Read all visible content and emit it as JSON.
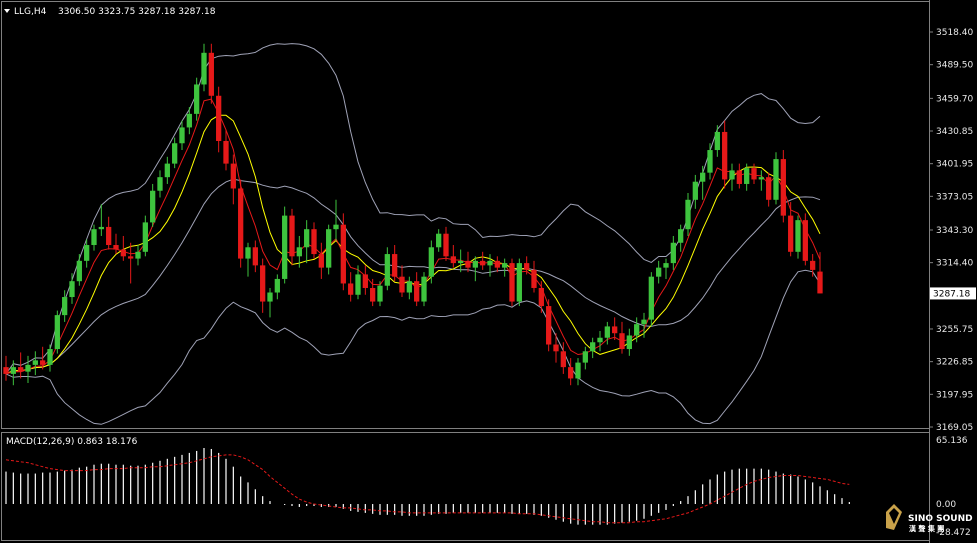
{
  "header": {
    "symbol": "LLG,H4",
    "ohlc": "3306.50 3323.75 3287.18 3287.18"
  },
  "macd_header": "MACD(12,26,9) 0.863 18.176",
  "logo": {
    "text": "SINO SOUND",
    "sub": "漢 聲 集 團"
  },
  "colors": {
    "bull": "#3ec43e",
    "bear": "#e61919",
    "ma_fast": "#e61919",
    "ma_slow": "#ffff00",
    "bands": "#9fa2b6",
    "macd_hist": "#ffffff",
    "macd_signal": "#e61919",
    "background": "#000000",
    "grid": "#808080"
  },
  "chart_data": [
    {
      "type": "candlestick",
      "timeframe": "H4",
      "yticks": [
        "3518.40",
        "3489.50",
        "3459.70",
        "3430.85",
        "3401.95",
        "3373.05",
        "3343.30",
        "3314.40",
        "3285.50",
        "3255.75",
        "3226.85",
        "3197.95",
        "3169.05"
      ],
      "ylim": [
        3169.05,
        3533
      ],
      "current_price": "3287.18",
      "candles": [
        [
          3222,
          3232,
          3210,
          3216
        ],
        [
          3216,
          3228,
          3206,
          3222
        ],
        [
          3222,
          3235,
          3212,
          3218
        ],
        [
          3218,
          3232,
          3208,
          3224
        ],
        [
          3224,
          3236,
          3215,
          3228
        ],
        [
          3228,
          3240,
          3220,
          3224
        ],
        [
          3224,
          3242,
          3218,
          3238
        ],
        [
          3238,
          3272,
          3234,
          3268
        ],
        [
          3268,
          3290,
          3262,
          3284
        ],
        [
          3284,
          3305,
          3278,
          3298
        ],
        [
          3298,
          3322,
          3294,
          3316
        ],
        [
          3316,
          3335,
          3310,
          3330
        ],
        [
          3330,
          3348,
          3325,
          3344
        ],
        [
          3344,
          3366,
          3338,
          3346
        ],
        [
          3346,
          3355,
          3326,
          3330
        ],
        [
          3330,
          3340,
          3322,
          3326
        ],
        [
          3326,
          3338,
          3316,
          3320
        ],
        [
          3320,
          3332,
          3296,
          3318
        ],
        [
          3318,
          3330,
          3312,
          3324
        ],
        [
          3324,
          3356,
          3320,
          3350
        ],
        [
          3350,
          3384,
          3346,
          3378
        ],
        [
          3378,
          3396,
          3372,
          3390
        ],
        [
          3390,
          3408,
          3384,
          3402
        ],
        [
          3402,
          3425,
          3398,
          3420
        ],
        [
          3420,
          3440,
          3414,
          3434
        ],
        [
          3434,
          3452,
          3428,
          3446
        ],
        [
          3446,
          3478,
          3440,
          3472
        ],
        [
          3472,
          3508,
          3466,
          3500
        ],
        [
          3500,
          3508,
          3455,
          3462
        ],
        [
          3462,
          3470,
          3412,
          3422
        ],
        [
          3422,
          3432,
          3396,
          3402
        ],
        [
          3402,
          3410,
          3366,
          3380
        ],
        [
          3380,
          3388,
          3310,
          3318
        ],
        [
          3318,
          3332,
          3302,
          3328
        ],
        [
          3328,
          3334,
          3306,
          3312
        ],
        [
          3312,
          3318,
          3270,
          3280
        ],
        [
          3280,
          3292,
          3266,
          3288
        ],
        [
          3288,
          3304,
          3282,
          3300
        ],
        [
          3300,
          3364,
          3296,
          3356
        ],
        [
          3356,
          3362,
          3312,
          3320
        ],
        [
          3320,
          3338,
          3310,
          3328
        ],
        [
          3328,
          3352,
          3314,
          3344
        ],
        [
          3344,
          3350,
          3318,
          3322
        ],
        [
          3322,
          3332,
          3300,
          3310
        ],
        [
          3310,
          3348,
          3304,
          3344
        ],
        [
          3344,
          3370,
          3334,
          3348
        ],
        [
          3348,
          3358,
          3290,
          3296
        ],
        [
          3296,
          3306,
          3280,
          3286
        ],
        [
          3286,
          3312,
          3282,
          3304
        ],
        [
          3304,
          3312,
          3286,
          3292
        ],
        [
          3292,
          3300,
          3276,
          3280
        ],
        [
          3280,
          3298,
          3276,
          3294
        ],
        [
          3294,
          3328,
          3290,
          3322
        ],
        [
          3322,
          3330,
          3298,
          3302
        ],
        [
          3302,
          3312,
          3284,
          3288
        ],
        [
          3288,
          3302,
          3282,
          3298
        ],
        [
          3298,
          3306,
          3276,
          3280
        ],
        [
          3280,
          3306,
          3276,
          3302
        ],
        [
          3302,
          3334,
          3296,
          3328
        ],
        [
          3328,
          3344,
          3324,
          3340
        ],
        [
          3340,
          3346,
          3316,
          3320
        ],
        [
          3320,
          3330,
          3310,
          3314
        ],
        [
          3314,
          3326,
          3306,
          3316
        ],
        [
          3316,
          3324,
          3306,
          3310
        ],
        [
          3310,
          3320,
          3298,
          3316
        ],
        [
          3316,
          3324,
          3308,
          3312
        ],
        [
          3312,
          3322,
          3302,
          3316
        ],
        [
          3316,
          3320,
          3306,
          3310
        ],
        [
          3310,
          3318,
          3302,
          3314
        ],
        [
          3314,
          3318,
          3276,
          3280
        ],
        [
          3280,
          3318,
          3276,
          3314
        ],
        [
          3314,
          3320,
          3304,
          3308
        ],
        [
          3308,
          3316,
          3288,
          3292
        ],
        [
          3292,
          3298,
          3270,
          3276
        ],
        [
          3276,
          3282,
          3236,
          3242
        ],
        [
          3242,
          3252,
          3226,
          3236
        ],
        [
          3236,
          3244,
          3216,
          3222
        ],
        [
          3222,
          3230,
          3206,
          3212
        ],
        [
          3212,
          3230,
          3206,
          3226
        ],
        [
          3226,
          3240,
          3220,
          3236
        ],
        [
          3236,
          3248,
          3230,
          3244
        ],
        [
          3244,
          3254,
          3236,
          3248
        ],
        [
          3248,
          3262,
          3242,
          3258
        ],
        [
          3258,
          3266,
          3246,
          3252
        ],
        [
          3252,
          3262,
          3234,
          3238
        ],
        [
          3238,
          3256,
          3232,
          3250
        ],
        [
          3250,
          3266,
          3244,
          3260
        ],
        [
          3260,
          3270,
          3248,
          3264
        ],
        [
          3264,
          3306,
          3258,
          3302
        ],
        [
          3302,
          3316,
          3296,
          3310
        ],
        [
          3310,
          3318,
          3300,
          3314
        ],
        [
          3314,
          3338,
          3308,
          3332
        ],
        [
          3332,
          3348,
          3324,
          3344
        ],
        [
          3344,
          3376,
          3338,
          3370
        ],
        [
          3370,
          3392,
          3362,
          3386
        ],
        [
          3386,
          3400,
          3370,
          3394
        ],
        [
          3394,
          3420,
          3388,
          3414
        ],
        [
          3414,
          3436,
          3408,
          3430
        ],
        [
          3430,
          3440,
          3380,
          3388
        ],
        [
          3388,
          3402,
          3378,
          3396
        ],
        [
          3396,
          3402,
          3380,
          3384
        ],
        [
          3384,
          3402,
          3378,
          3398
        ],
        [
          3398,
          3402,
          3384,
          3388
        ],
        [
          3388,
          3396,
          3378,
          3390
        ],
        [
          3390,
          3394,
          3364,
          3370
        ],
        [
          3370,
          3412,
          3366,
          3406
        ],
        [
          3406,
          3414,
          3350,
          3356
        ],
        [
          3356,
          3368,
          3320,
          3324
        ],
        [
          3324,
          3356,
          3318,
          3352
        ],
        [
          3352,
          3358,
          3312,
          3316
        ],
        [
          3316,
          3322,
          3302,
          3308
        ],
        [
          3306.5,
          3323.75,
          3287.18,
          3287.18
        ]
      ]
    },
    {
      "type": "bar+line",
      "name": "MACD(12,26,9)",
      "main": 0.863,
      "signal_value": 18.176,
      "yticks": [
        "65.136",
        "0.00",
        "-28.472"
      ],
      "ylim": [
        -28.472,
        65.136
      ],
      "histogram": [
        33,
        32,
        31,
        31,
        31,
        32,
        32,
        33,
        34,
        35,
        37,
        38,
        40,
        41,
        41,
        40,
        40,
        39,
        39,
        40,
        42,
        44,
        46,
        48,
        50,
        52,
        54,
        57,
        56,
        52,
        46,
        38,
        28,
        22,
        15,
        8,
        3,
        0,
        -1,
        -2,
        -3,
        -2,
        -2,
        -3,
        -3,
        -3,
        -5,
        -7,
        -8,
        -9,
        -10,
        -11,
        -11,
        -11,
        -12,
        -12,
        -12,
        -12,
        -11,
        -10,
        -10,
        -9,
        -9,
        -9,
        -9,
        -9,
        -9,
        -9,
        -9,
        -10,
        -10,
        -10,
        -11,
        -12,
        -14,
        -16,
        -18,
        -20,
        -21,
        -21,
        -21,
        -21,
        -21,
        -20,
        -19,
        -18,
        -17,
        -15,
        -12,
        -9,
        -6,
        -2,
        3,
        8,
        14,
        20,
        25,
        30,
        33,
        35,
        36,
        36,
        36,
        36,
        35,
        33,
        31,
        30,
        28,
        25,
        22,
        18,
        14,
        10,
        6,
        2
      ],
      "signal": [
        45,
        44,
        43,
        42,
        40,
        38,
        36,
        35,
        34,
        34,
        34,
        34,
        35,
        35,
        36,
        36,
        36,
        37,
        37,
        37,
        38,
        38,
        39,
        40,
        41,
        42,
        44,
        46,
        48,
        49,
        50,
        50,
        48,
        45,
        40,
        35,
        28,
        22,
        16,
        10,
        5,
        2,
        0,
        -1,
        -2,
        -3,
        -4,
        -4,
        -5,
        -6,
        -6,
        -7,
        -7,
        -8,
        -8,
        -9,
        -9,
        -9,
        -9,
        -9,
        -9,
        -9,
        -9,
        -9,
        -9,
        -9,
        -9,
        -9,
        -9,
        -9,
        -10,
        -10,
        -10,
        -11,
        -12,
        -13,
        -14,
        -15,
        -16,
        -17,
        -18,
        -18,
        -19,
        -19,
        -19,
        -19,
        -18,
        -18,
        -17,
        -16,
        -15,
        -13,
        -11,
        -9,
        -6,
        -3,
        0,
        4,
        8,
        12,
        16,
        20,
        23,
        25,
        27,
        28,
        29,
        29,
        29,
        28,
        27,
        26,
        25,
        23,
        21,
        20
      ]
    }
  ]
}
